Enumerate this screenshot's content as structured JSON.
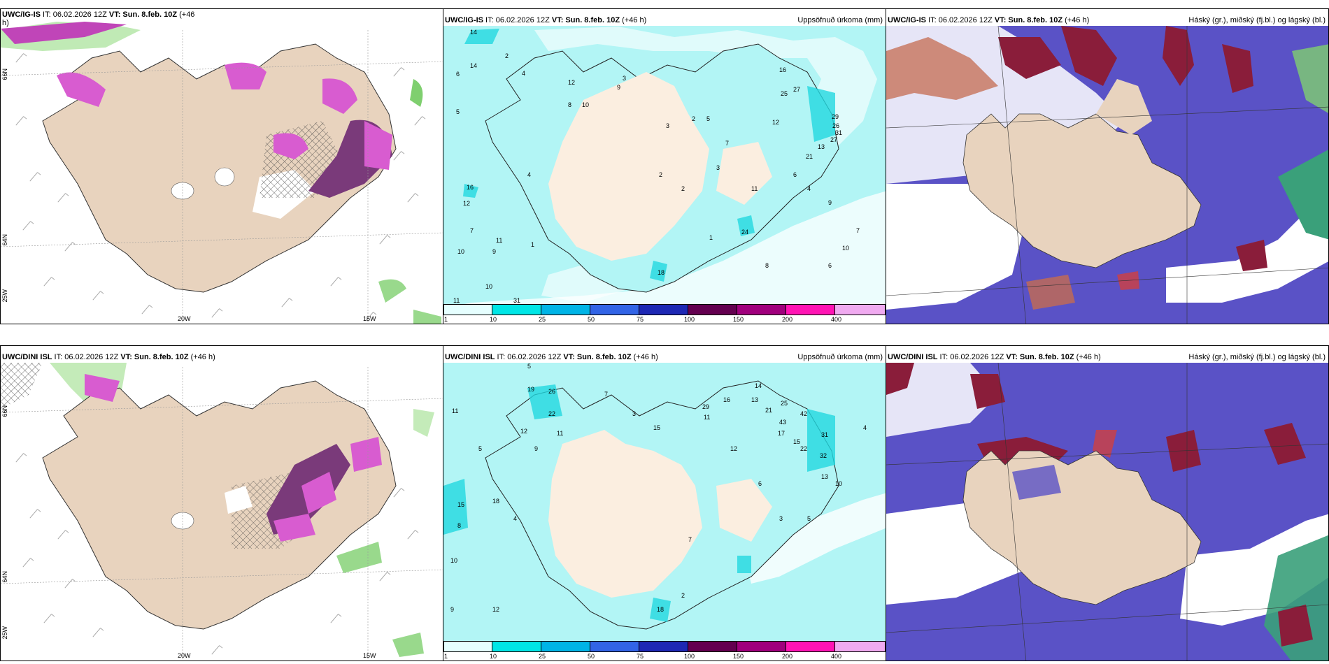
{
  "panels": [
    {
      "id": "p1",
      "title_model": "UWC/IG-IS",
      "title_rest": " IT: 06.02.2026 12Z ",
      "title_vt": "VT: Sun. 8.feb. 10Z",
      "title_lead": " (+46",
      "title_line2": "h)",
      "right": ""
    },
    {
      "id": "p2",
      "title_model": "UWC/IG-IS",
      "title_rest": " IT: 06.02.2026 12Z ",
      "title_vt": "VT: Sun. 8.feb. 10Z",
      "title_lead": " (+46 h)",
      "title_line2": "",
      "right": "Uppsöfnuð úrkoma (mm)"
    },
    {
      "id": "p3",
      "title_model": "UWC/IG-IS",
      "title_rest": " IT: 06.02.2026 12Z ",
      "title_vt": "VT: Sun. 8.feb. 10Z",
      "title_lead": " (+46 h)",
      "title_line2": "",
      "right": "Háský (gr.), miðský (fj.bl.) og lágský (bl.)"
    },
    {
      "id": "p4",
      "title_model": "UWC/DINI ISL",
      "title_rest": " IT: 06.02.2026 12Z ",
      "title_vt": "VT: Sun. 8.feb. 10Z",
      "title_lead": " (+46 h)",
      "title_line2": "",
      "right": ""
    },
    {
      "id": "p5",
      "title_model": "UWC/DINI ISL",
      "title_rest": " IT: 06.02.2026 12Z ",
      "title_vt": "VT: Sun. 8.feb. 10Z",
      "title_lead": " (+46 h)",
      "title_line2": "",
      "right": "Uppsöfnuð úrkoma (mm)"
    },
    {
      "id": "p6",
      "title_model": "UWC/DINI ISL",
      "title_rest": " IT: 06.02.2026 12Z ",
      "title_vt": "VT: Sun. 8.feb. 10Z",
      "title_lead": " (+46 h)",
      "title_line2": "",
      "right": "Háský (gr.), miðský (fj.bl.) og lágský (bl.)"
    }
  ],
  "grid_labels": {
    "lon_20": "20W",
    "lon_15": "15W",
    "lon_25": "25W",
    "lat_66": "66N",
    "lat_64": "64N"
  },
  "colorbar": {
    "labels": [
      "1",
      "10",
      "25",
      "50",
      "75",
      "100",
      "150",
      "200",
      "400"
    ],
    "colors": [
      "#e6ffff",
      "#00e6e6",
      "#00b4e6",
      "#3264e6",
      "#1e28b4",
      "#640050",
      "#a0007d",
      "#ff14b4",
      "#f0aaf0"
    ]
  },
  "chart_data": [
    {
      "type": "map",
      "panel": "p2",
      "layer": "Uppsöfnuð úrkoma (mm)",
      "point_labels": [
        "14",
        "14",
        "6",
        "5",
        "2",
        "4",
        "12",
        "9",
        "8",
        "10",
        "3",
        "16",
        "12",
        "7",
        "11",
        "10",
        "9",
        "1",
        "2",
        "3",
        "2",
        "5",
        "7",
        "8",
        "12",
        "25",
        "27",
        "29",
        "26",
        "31",
        "27",
        "13",
        "21",
        "24",
        "18",
        "4",
        "16",
        "11",
        "10",
        "6",
        "9",
        "1",
        "2",
        "3",
        "6",
        "7",
        "8"
      ]
    },
    {
      "type": "map",
      "panel": "p5",
      "layer": "Uppsöfnuð úrkoma (mm)",
      "point_labels": [
        "11",
        "15",
        "10",
        "5",
        "18",
        "19",
        "26",
        "22",
        "12",
        "11",
        "9",
        "7",
        "8",
        "3",
        "5",
        "4",
        "15",
        "9",
        "29",
        "16",
        "11",
        "14",
        "13",
        "21",
        "25",
        "43",
        "42",
        "17",
        "22",
        "31",
        "32",
        "15",
        "13",
        "10",
        "12",
        "18",
        "2",
        "3",
        "7",
        "6",
        "5",
        "4"
      ]
    }
  ]
}
